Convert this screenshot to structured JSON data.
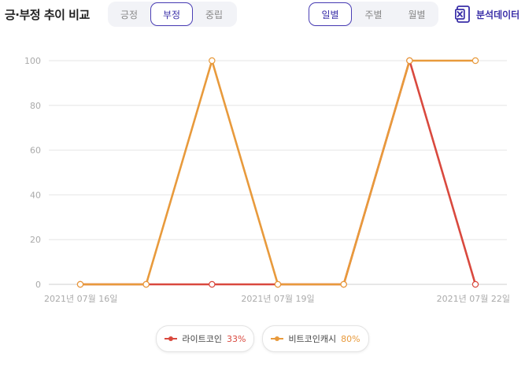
{
  "header": {
    "title": "긍·부정 추이 비교",
    "sentiment_tabs": [
      "긍정",
      "부정",
      "중립"
    ],
    "sentiment_active": 1,
    "period_tabs": [
      "일별",
      "주별",
      "월별"
    ],
    "period_active": 0,
    "analysis_label": "분석데이터"
  },
  "colors": {
    "accent": "#3a2fa8",
    "series_red": "#d9493e",
    "series_orange": "#e89a3c"
  },
  "legend": [
    {
      "name": "라이트코인",
      "pct": "33%",
      "color": "#d9493e"
    },
    {
      "name": "비트코인캐시",
      "pct": "80%",
      "color": "#e89a3c"
    }
  ],
  "chart_data": {
    "type": "line",
    "x": [
      "2021-07-16",
      "2021-07-17",
      "2021-07-18",
      "2021-07-19",
      "2021-07-20",
      "2021-07-21",
      "2021-07-22"
    ],
    "x_tick_labels": [
      "2021년 07월 16일",
      "",
      "",
      "2021년 07월 19일",
      "",
      "",
      "2021년 07월 22일"
    ],
    "ylim": [
      0,
      100
    ],
    "y_ticks": [
      0,
      20,
      40,
      60,
      80,
      100
    ],
    "grid": true,
    "series": [
      {
        "name": "라이트코인",
        "color": "#d9493e",
        "values": [
          0,
          0,
          0,
          0,
          0,
          100,
          0
        ]
      },
      {
        "name": "비트코인캐시",
        "color": "#e89a3c",
        "values": [
          0,
          0,
          100,
          0,
          0,
          100,
          100
        ]
      }
    ]
  }
}
